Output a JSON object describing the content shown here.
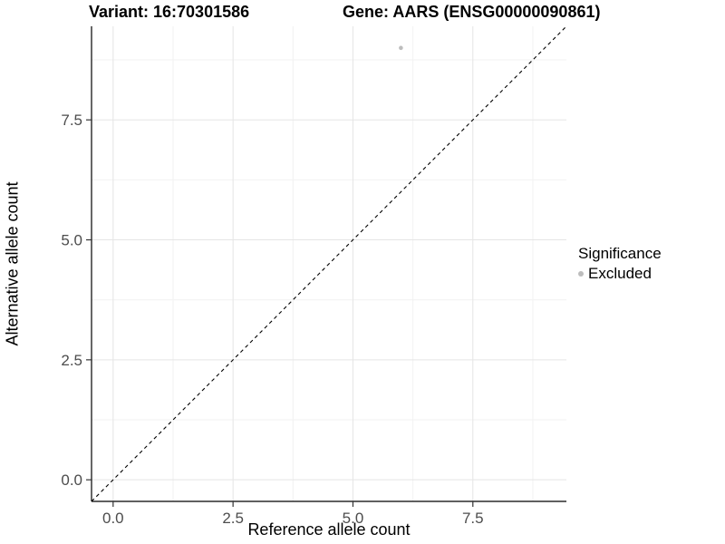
{
  "title": {
    "variant": "Variant: 16:70301586",
    "gene": "Gene: AARS (ENSG00000090861)"
  },
  "chart_data": {
    "type": "scatter",
    "title": "Variant: 16:70301586   Gene: AARS (ENSG00000090861)",
    "xlabel": "Reference allele count",
    "ylabel": "Alternative allele count",
    "xlim": [
      -0.45,
      9.45
    ],
    "ylim": [
      -0.45,
      9.45
    ],
    "xticks": [
      0.0,
      2.5,
      5.0,
      7.5
    ],
    "yticks": [
      0.0,
      2.5,
      5.0,
      7.5
    ],
    "minor_xticks": [
      1.25,
      3.75,
      6.25,
      8.75
    ],
    "minor_yticks": [
      1.25,
      3.75,
      6.25,
      8.75
    ],
    "tick_label_format": "one_decimal",
    "grid": true,
    "series": [
      {
        "name": "Excluded",
        "color": "#bdbdbd",
        "points": [
          {
            "x": 6,
            "y": 9
          }
        ]
      }
    ],
    "reference_line": {
      "description": "identity line y = x",
      "style": "dashed",
      "color": "#000000"
    },
    "legend": {
      "title": "Significance",
      "position": "right",
      "entries": [
        {
          "label": "Excluded",
          "color": "#bdbdbd"
        }
      ]
    }
  },
  "colors": {
    "background": "#ffffff",
    "major_grid": "#e5e5e5",
    "minor_grid": "#f2f2f2",
    "axis_line": "#000000",
    "tick_mark": "#333333",
    "tick_label": "#4d4d4d",
    "point": "#bdbdbd"
  }
}
